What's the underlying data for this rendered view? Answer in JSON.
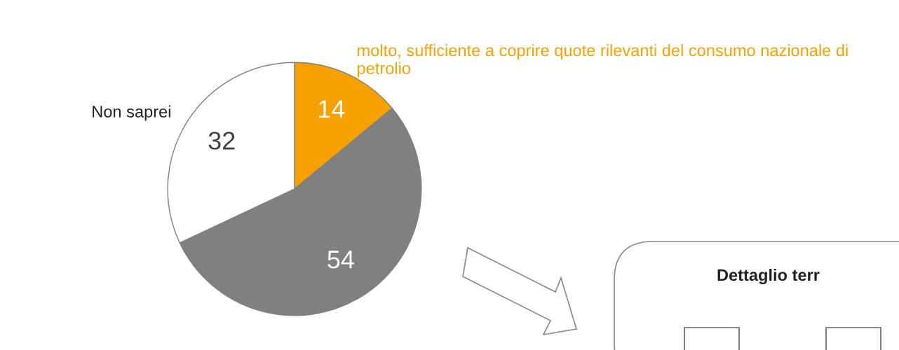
{
  "chart_data": {
    "type": "pie",
    "categories": [
      "molto, sufficiente a coprire quote rilevanti del consumo nazionale di petrolio",
      null,
      "Non saprei"
    ],
    "values": [
      14,
      54,
      32
    ],
    "colors": [
      "#f7a100",
      "#808080",
      "#ffffff"
    ],
    "data_labels": true,
    "annotations": [
      "Dettaglio terr"
    ]
  }
}
